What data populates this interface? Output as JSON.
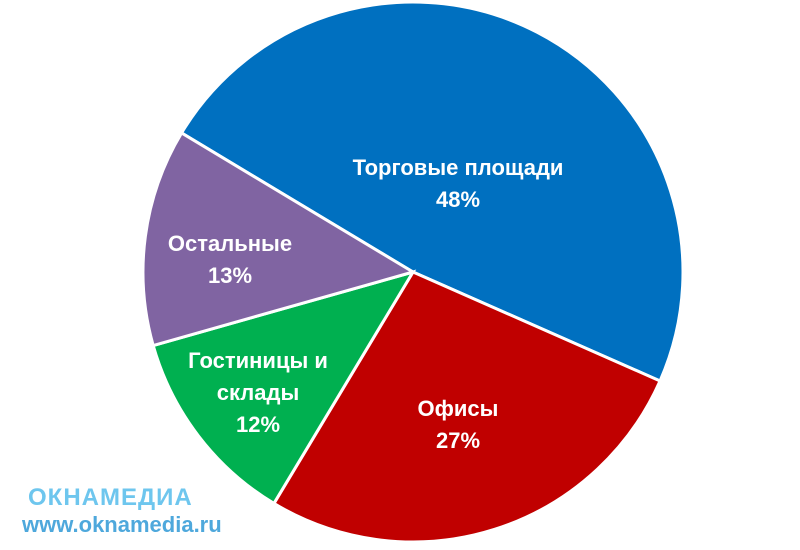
{
  "chart_data": {
    "type": "pie",
    "categories": [
      "Торговые площади",
      "Офисы",
      "Гостиницы и склады",
      "Остальные"
    ],
    "values": [
      48,
      27,
      12,
      13
    ],
    "value_labels": [
      "48%",
      "27%",
      "12%",
      "13%"
    ],
    "colors": [
      "#0070c0",
      "#c00000",
      "#00b050",
      "#8064a2"
    ]
  },
  "watermark": {
    "brand": "ОКНАМЕДИА",
    "url": "www.oknamedia.ru"
  }
}
